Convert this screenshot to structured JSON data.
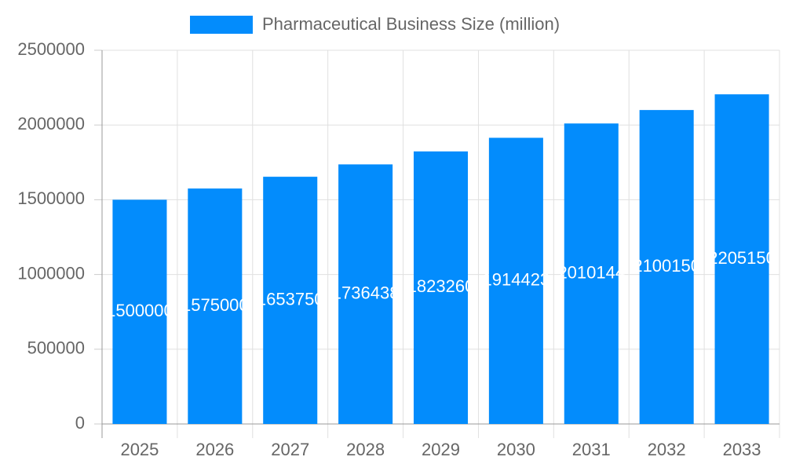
{
  "chart_data": {
    "type": "bar",
    "categories": [
      "2025",
      "2026",
      "2027",
      "2028",
      "2029",
      "2030",
      "2031",
      "2032",
      "2033"
    ],
    "series": [
      {
        "name": "Pharmaceutical Business Size (million)",
        "color": "#038cfc",
        "values": [
          1500000,
          1575000,
          1653750,
          1736438,
          1823260,
          1914423,
          2010144,
          2100150,
          2205150
        ]
      }
    ],
    "ylim": [
      0,
      2500000
    ],
    "yticks": [
      0,
      500000,
      1000000,
      1500000,
      2000000,
      2500000
    ],
    "grid": true
  }
}
